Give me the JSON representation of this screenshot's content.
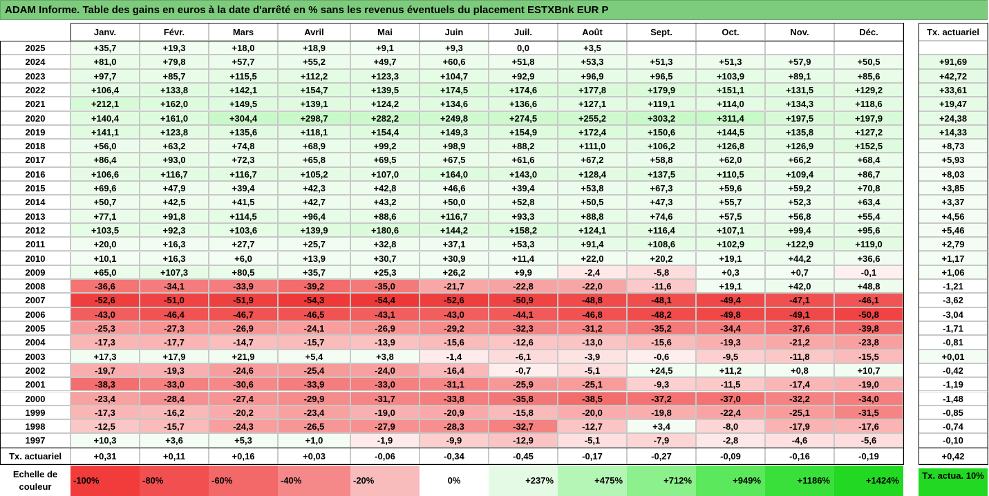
{
  "title": "ADAM Informe. Table des gains en euros à la date d'arrêté en % sans les revenus éventuels du placement ESTXBnk EUR P",
  "months": [
    "Janv.",
    "Févr.",
    "Mars",
    "Avril",
    "Mai",
    "Juin",
    "Juil.",
    "Août",
    "Sept.",
    "Oct.",
    "Nov.",
    "Déc."
  ],
  "tx_header": "Tx. actuariel",
  "rows": [
    {
      "year": "2025",
      "values": [
        "+35,7",
        "+19,3",
        "+18,0",
        "+18,9",
        "+9,1",
        "+9,3",
        "0,0",
        "+3,5",
        "",
        "",
        "",
        ""
      ],
      "tx": ""
    },
    {
      "year": "2024",
      "values": [
        "+81,0",
        "+79,8",
        "+57,7",
        "+55,2",
        "+49,7",
        "+60,6",
        "+51,8",
        "+53,3",
        "+51,3",
        "+51,3",
        "+57,9",
        "+50,5"
      ],
      "tx": "+91,69"
    },
    {
      "year": "2023",
      "values": [
        "+97,7",
        "+85,7",
        "+115,5",
        "+112,2",
        "+123,3",
        "+104,7",
        "+92,9",
        "+96,9",
        "+96,5",
        "+103,9",
        "+89,1",
        "+85,6"
      ],
      "tx": "+42,72"
    },
    {
      "year": "2022",
      "values": [
        "+106,4",
        "+133,8",
        "+142,1",
        "+154,7",
        "+139,5",
        "+174,5",
        "+174,6",
        "+177,8",
        "+179,9",
        "+151,1",
        "+131,5",
        "+129,2"
      ],
      "tx": "+33,61"
    },
    {
      "year": "2021",
      "values": [
        "+212,1",
        "+162,0",
        "+149,5",
        "+139,1",
        "+124,2",
        "+134,6",
        "+136,6",
        "+127,1",
        "+119,1",
        "+114,0",
        "+134,3",
        "+118,6"
      ],
      "tx": "+19,47"
    },
    {
      "year": "2020",
      "values": [
        "+140,4",
        "+161,0",
        "+304,4",
        "+298,7",
        "+282,2",
        "+249,8",
        "+274,5",
        "+255,2",
        "+303,2",
        "+311,4",
        "+197,5",
        "+197,9"
      ],
      "tx": "+24,38"
    },
    {
      "year": "2019",
      "values": [
        "+141,1",
        "+123,8",
        "+135,6",
        "+118,1",
        "+154,4",
        "+149,3",
        "+154,9",
        "+172,4",
        "+150,6",
        "+144,5",
        "+135,8",
        "+127,2"
      ],
      "tx": "+14,33"
    },
    {
      "year": "2018",
      "values": [
        "+56,0",
        "+63,2",
        "+74,8",
        "+68,9",
        "+99,2",
        "+98,9",
        "+88,2",
        "+111,0",
        "+106,2",
        "+126,8",
        "+126,9",
        "+152,5"
      ],
      "tx": "+8,73"
    },
    {
      "year": "2017",
      "values": [
        "+86,4",
        "+93,0",
        "+72,3",
        "+65,8",
        "+69,5",
        "+67,5",
        "+61,6",
        "+67,2",
        "+58,8",
        "+62,0",
        "+66,2",
        "+68,4"
      ],
      "tx": "+5,93"
    },
    {
      "year": "2016",
      "values": [
        "+106,6",
        "+116,7",
        "+116,7",
        "+105,2",
        "+107,0",
        "+164,0",
        "+143,0",
        "+128,4",
        "+137,5",
        "+110,5",
        "+109,4",
        "+86,7"
      ],
      "tx": "+8,03"
    },
    {
      "year": "2015",
      "values": [
        "+69,6",
        "+47,9",
        "+39,4",
        "+42,3",
        "+42,8",
        "+46,6",
        "+39,4",
        "+53,8",
        "+67,3",
        "+59,6",
        "+59,2",
        "+70,8"
      ],
      "tx": "+3,85"
    },
    {
      "year": "2014",
      "values": [
        "+50,7",
        "+42,5",
        "+41,5",
        "+42,7",
        "+43,2",
        "+50,0",
        "+52,8",
        "+50,5",
        "+47,3",
        "+55,7",
        "+52,3",
        "+63,4"
      ],
      "tx": "+3,37"
    },
    {
      "year": "2013",
      "values": [
        "+77,1",
        "+91,8",
        "+114,5",
        "+96,4",
        "+88,6",
        "+116,7",
        "+93,3",
        "+88,8",
        "+74,6",
        "+57,5",
        "+56,8",
        "+55,4"
      ],
      "tx": "+4,56"
    },
    {
      "year": "2012",
      "values": [
        "+103,5",
        "+92,3",
        "+103,6",
        "+139,9",
        "+180,6",
        "+144,2",
        "+158,2",
        "+124,1",
        "+116,4",
        "+107,1",
        "+99,4",
        "+95,6"
      ],
      "tx": "+5,46"
    },
    {
      "year": "2011",
      "values": [
        "+20,0",
        "+16,3",
        "+27,7",
        "+25,7",
        "+32,8",
        "+37,1",
        "+53,3",
        "+91,4",
        "+108,6",
        "+102,9",
        "+122,9",
        "+119,0"
      ],
      "tx": "+2,79"
    },
    {
      "year": "2010",
      "values": [
        "+10,1",
        "+16,3",
        "+6,0",
        "+13,9",
        "+30,7",
        "+30,9",
        "+11,4",
        "+22,0",
        "+20,2",
        "+19,1",
        "+44,2",
        "+36,6"
      ],
      "tx": "+1,17"
    },
    {
      "year": "2009",
      "values": [
        "+65,0",
        "+107,3",
        "+80,5",
        "+35,7",
        "+25,3",
        "+26,2",
        "+9,9",
        "-2,4",
        "-5,8",
        "+0,3",
        "+0,7",
        "-0,1"
      ],
      "tx": "+1,06"
    },
    {
      "year": "2008",
      "values": [
        "-36,6",
        "-34,1",
        "-33,9",
        "-39,2",
        "-35,0",
        "-21,7",
        "-22,8",
        "-22,0",
        "-11,6",
        "+19,1",
        "+42,0",
        "+48,8"
      ],
      "tx": "-1,21"
    },
    {
      "year": "2007",
      "values": [
        "-52,6",
        "-51,0",
        "-51,9",
        "-54,3",
        "-54,4",
        "-52,6",
        "-50,9",
        "-48,8",
        "-48,1",
        "-49,4",
        "-47,1",
        "-46,1"
      ],
      "tx": "-3,62"
    },
    {
      "year": "2006",
      "values": [
        "-43,0",
        "-46,4",
        "-46,7",
        "-46,5",
        "-43,1",
        "-43,0",
        "-44,1",
        "-46,8",
        "-48,2",
        "-49,8",
        "-49,1",
        "-50,8"
      ],
      "tx": "-3,04"
    },
    {
      "year": "2005",
      "values": [
        "-25,3",
        "-27,3",
        "-26,9",
        "-24,1",
        "-26,9",
        "-29,2",
        "-32,3",
        "-31,2",
        "-35,2",
        "-34,4",
        "-37,6",
        "-39,8"
      ],
      "tx": "-1,71"
    },
    {
      "year": "2004",
      "values": [
        "-17,3",
        "-17,7",
        "-14,7",
        "-15,7",
        "-13,9",
        "-15,6",
        "-12,6",
        "-13,0",
        "-15,6",
        "-19,3",
        "-21,2",
        "-23,8"
      ],
      "tx": "-0,81"
    },
    {
      "year": "2003",
      "values": [
        "+17,3",
        "+17,9",
        "+21,9",
        "+5,4",
        "+3,8",
        "-1,4",
        "-6,1",
        "-3,9",
        "-0,6",
        "-9,5",
        "-11,8",
        "-15,5"
      ],
      "tx": "+0,01"
    },
    {
      "year": "2002",
      "values": [
        "-19,7",
        "-19,3",
        "-24,6",
        "-25,4",
        "-24,0",
        "-16,4",
        "-0,7",
        "-5,1",
        "+24,5",
        "+11,2",
        "+0,8",
        "+10,7"
      ],
      "tx": "-0,42"
    },
    {
      "year": "2001",
      "values": [
        "-38,3",
        "-33,0",
        "-30,6",
        "-33,9",
        "-33,0",
        "-31,1",
        "-25,9",
        "-25,1",
        "-9,3",
        "-11,5",
        "-17,4",
        "-19,0"
      ],
      "tx": "-1,19"
    },
    {
      "year": "2000",
      "values": [
        "-23,4",
        "-28,4",
        "-27,4",
        "-29,9",
        "-31,7",
        "-33,8",
        "-35,8",
        "-38,5",
        "-37,2",
        "-37,0",
        "-32,2",
        "-34,0"
      ],
      "tx": "-1,48"
    },
    {
      "year": "1999",
      "values": [
        "-17,3",
        "-16,2",
        "-20,2",
        "-23,4",
        "-19,0",
        "-20,9",
        "-15,8",
        "-20,0",
        "-19,8",
        "-22,4",
        "-25,1",
        "-31,5"
      ],
      "tx": "-0,85"
    },
    {
      "year": "1998",
      "values": [
        "-12,5",
        "-15,7",
        "-24,3",
        "-26,5",
        "-27,9",
        "-28,3",
        "-32,7",
        "-12,7",
        "+3,4",
        "-8,0",
        "-17,9",
        "-17,6"
      ],
      "tx": "-0,74"
    },
    {
      "year": "1997",
      "values": [
        "+10,3",
        "+3,6",
        "+5,3",
        "+1,0",
        "-1,9",
        "-9,9",
        "-12,9",
        "-5,1",
        "-7,9",
        "-2,8",
        "-4,6",
        "-5,6"
      ],
      "tx": "-0,10"
    }
  ],
  "footer": {
    "label": "Tx. actuariel",
    "values": [
      "+0,31",
      "+0,11",
      "+0,16",
      "+0,03",
      "-0,06",
      "-0,34",
      "-0,45",
      "-0,17",
      "-0,27",
      "-0,09",
      "-0,16",
      "-0,19"
    ],
    "tx": "+0,42"
  },
  "scale": {
    "label": "Echelle de couleur",
    "items": [
      {
        "text": "-100%",
        "color": "#f23b3b"
      },
      {
        "text": "-80%",
        "color": "#f25050"
      },
      {
        "text": "-60%",
        "color": "#f36868"
      },
      {
        "text": "-40%",
        "color": "#f58989"
      },
      {
        "text": "-20%",
        "color": "#f8bcbc"
      },
      {
        "text": "0%",
        "color": "#ffffff"
      },
      {
        "text": "+237%",
        "color": "#e4fae4"
      },
      {
        "text": "+475%",
        "color": "#b5f5b5"
      },
      {
        "text": "+712%",
        "color": "#8cf08c"
      },
      {
        "text": "+949%",
        "color": "#5ce85c"
      },
      {
        "text": "+1186%",
        "color": "#3ae03a"
      },
      {
        "text": "+1424%",
        "color": "#22d822"
      }
    ],
    "tx_label": "Tx. actua. 10%",
    "tx_color": "#22d822"
  }
}
